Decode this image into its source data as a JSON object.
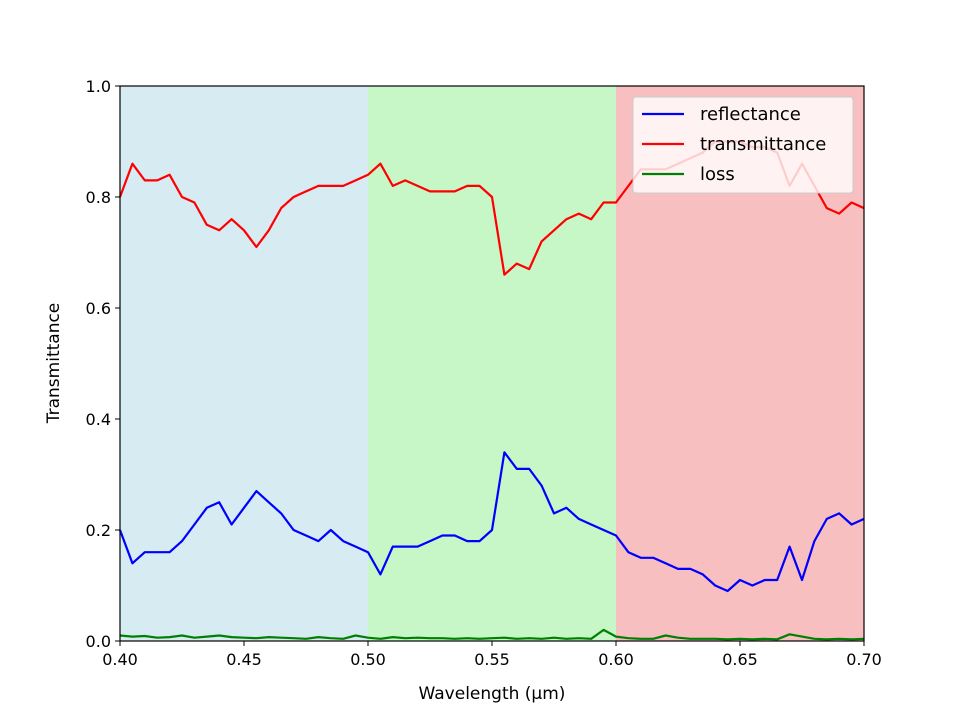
{
  "chart_data": {
    "type": "line",
    "title": "",
    "xlabel": "Wavelength (µm)",
    "ylabel": "Transmittance",
    "xlim": [
      0.4,
      0.7
    ],
    "ylim": [
      0.0,
      1.0
    ],
    "x_ticks": [
      "0.40",
      "0.45",
      "0.50",
      "0.55",
      "0.60",
      "0.65",
      "0.70"
    ],
    "y_ticks": [
      "0.0",
      "0.2",
      "0.4",
      "0.6",
      "0.8",
      "1.0"
    ],
    "grid": false,
    "legend_position": "top-right",
    "bands": [
      {
        "range": [
          0.4,
          0.5
        ],
        "color": "#add8e6"
      },
      {
        "range": [
          0.5,
          0.6
        ],
        "color": "#90ee90"
      },
      {
        "range": [
          0.6,
          0.7
        ],
        "color": "#f08080"
      }
    ],
    "x": [
      0.4,
      0.405,
      0.41,
      0.415,
      0.42,
      0.425,
      0.43,
      0.435,
      0.44,
      0.445,
      0.45,
      0.455,
      0.46,
      0.465,
      0.47,
      0.475,
      0.48,
      0.485,
      0.49,
      0.495,
      0.5,
      0.505,
      0.51,
      0.515,
      0.52,
      0.525,
      0.53,
      0.535,
      0.54,
      0.545,
      0.55,
      0.555,
      0.56,
      0.565,
      0.57,
      0.575,
      0.58,
      0.585,
      0.59,
      0.595,
      0.6,
      0.605,
      0.61,
      0.615,
      0.62,
      0.625,
      0.63,
      0.635,
      0.64,
      0.645,
      0.65,
      0.655,
      0.66,
      0.665,
      0.67,
      0.675,
      0.68,
      0.685,
      0.69,
      0.695,
      0.7
    ],
    "series": [
      {
        "name": "reflectance",
        "color": "#0000ff",
        "values": [
          0.2,
          0.14,
          0.16,
          0.16,
          0.16,
          0.18,
          0.21,
          0.24,
          0.25,
          0.21,
          0.24,
          0.27,
          0.25,
          0.23,
          0.2,
          0.19,
          0.18,
          0.2,
          0.18,
          0.17,
          0.16,
          0.12,
          0.17,
          0.17,
          0.17,
          0.18,
          0.19,
          0.19,
          0.18,
          0.18,
          0.2,
          0.34,
          0.31,
          0.31,
          0.28,
          0.23,
          0.24,
          0.22,
          0.21,
          0.2,
          0.19,
          0.16,
          0.15,
          0.15,
          0.14,
          0.13,
          0.13,
          0.12,
          0.1,
          0.09,
          0.11,
          0.1,
          0.11,
          0.11,
          0.17,
          0.11,
          0.18,
          0.22,
          0.23,
          0.21,
          0.22
        ]
      },
      {
        "name": "transmittance",
        "color": "#ff0000",
        "values": [
          0.8,
          0.86,
          0.83,
          0.83,
          0.84,
          0.8,
          0.79,
          0.75,
          0.74,
          0.76,
          0.74,
          0.71,
          0.74,
          0.78,
          0.8,
          0.81,
          0.82,
          0.82,
          0.82,
          0.83,
          0.84,
          0.86,
          0.82,
          0.83,
          0.82,
          0.81,
          0.81,
          0.81,
          0.82,
          0.82,
          0.8,
          0.66,
          0.68,
          0.67,
          0.72,
          0.74,
          0.76,
          0.77,
          0.76,
          0.79,
          0.79,
          0.82,
          0.85,
          0.85,
          0.85,
          0.86,
          0.87,
          0.88,
          0.9,
          0.9,
          0.9,
          0.89,
          0.89,
          0.88,
          0.82,
          0.86,
          0.82,
          0.78,
          0.77,
          0.79,
          0.78
        ]
      },
      {
        "name": "loss",
        "color": "#008000",
        "values": [
          0.01,
          0.008,
          0.009,
          0.006,
          0.007,
          0.01,
          0.006,
          0.008,
          0.01,
          0.007,
          0.006,
          0.005,
          0.007,
          0.006,
          0.005,
          0.004,
          0.007,
          0.005,
          0.004,
          0.01,
          0.006,
          0.004,
          0.007,
          0.005,
          0.006,
          0.005,
          0.005,
          0.004,
          0.005,
          0.004,
          0.005,
          0.006,
          0.004,
          0.005,
          0.004,
          0.006,
          0.004,
          0.005,
          0.004,
          0.02,
          0.008,
          0.005,
          0.004,
          0.004,
          0.01,
          0.006,
          0.004,
          0.004,
          0.004,
          0.003,
          0.004,
          0.003,
          0.004,
          0.003,
          0.012,
          0.008,
          0.004,
          0.003,
          0.004,
          0.003,
          0.004
        ]
      }
    ]
  }
}
